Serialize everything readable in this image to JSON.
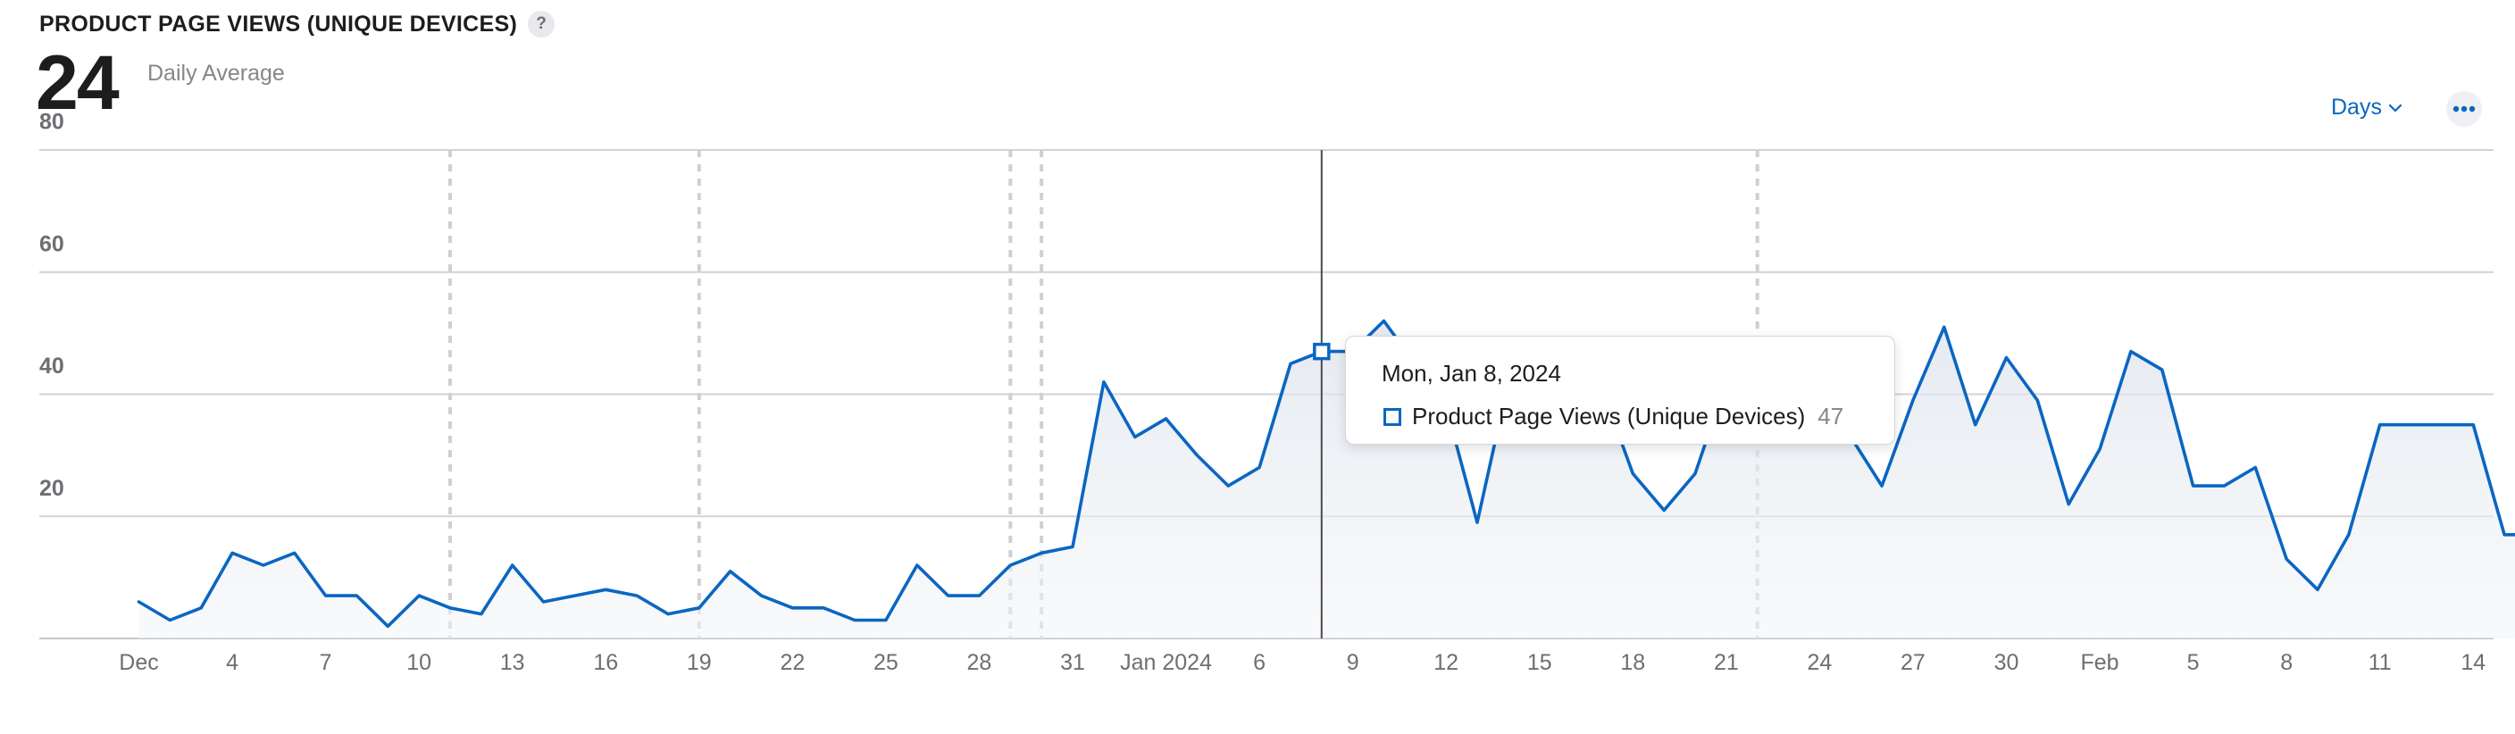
{
  "header": {
    "title": "PRODUCT PAGE VIEWS (UNIQUE DEVICES)",
    "help_icon": "?",
    "metric_value": "24",
    "metric_label": "Daily Average"
  },
  "controls": {
    "interval_label": "Days",
    "interval_icon": "chevron-down-icon",
    "more_icon": "ellipsis-icon"
  },
  "tooltip": {
    "date": "Mon, Jan 8, 2024",
    "series": "Product Page Views (Unique Devices)",
    "value": "47"
  },
  "colors": {
    "line": "#0a66c2",
    "grid": "#d2d2d7",
    "marker_line": "#4a4a4a"
  },
  "chart_data": {
    "type": "area",
    "title": "PRODUCT PAGE VIEWS (UNIQUE DEVICES)",
    "x_start": "2023-12-01",
    "x_end": "2024-02-16",
    "ylim": [
      0,
      80
    ],
    "yticks": [
      20,
      40,
      60,
      80
    ],
    "grid": true,
    "xticks": [
      {
        "date": "2023-12-01",
        "label": "Dec"
      },
      {
        "date": "2023-12-04",
        "label": "4"
      },
      {
        "date": "2023-12-07",
        "label": "7"
      },
      {
        "date": "2023-12-10",
        "label": "10"
      },
      {
        "date": "2023-12-13",
        "label": "13"
      },
      {
        "date": "2023-12-16",
        "label": "16"
      },
      {
        "date": "2023-12-19",
        "label": "19"
      },
      {
        "date": "2023-12-22",
        "label": "22"
      },
      {
        "date": "2023-12-25",
        "label": "25"
      },
      {
        "date": "2023-12-28",
        "label": "28"
      },
      {
        "date": "2023-12-31",
        "label": "31"
      },
      {
        "date": "2024-01-03",
        "label": "Jan 2024"
      },
      {
        "date": "2024-01-06",
        "label": "6"
      },
      {
        "date": "2024-01-09",
        "label": "9"
      },
      {
        "date": "2024-01-12",
        "label": "12"
      },
      {
        "date": "2024-01-15",
        "label": "15"
      },
      {
        "date": "2024-01-18",
        "label": "18"
      },
      {
        "date": "2024-01-21",
        "label": "21"
      },
      {
        "date": "2024-01-24",
        "label": "24"
      },
      {
        "date": "2024-01-27",
        "label": "27"
      },
      {
        "date": "2024-01-30",
        "label": "30"
      },
      {
        "date": "2024-02-02",
        "label": "Feb"
      },
      {
        "date": "2024-02-05",
        "label": "5"
      },
      {
        "date": "2024-02-08",
        "label": "8"
      },
      {
        "date": "2024-02-11",
        "label": "11"
      },
      {
        "date": "2024-02-14",
        "label": "14"
      }
    ],
    "annotation_dates": [
      "2023-12-11",
      "2023-12-19",
      "2023-12-29",
      "2023-12-30",
      "2024-01-22"
    ],
    "highlight_date": "2024-01-08",
    "series": [
      {
        "name": "Product Page Views (Unique Devices)",
        "dates": [
          "2023-12-01",
          "2023-12-02",
          "2023-12-03",
          "2023-12-04",
          "2023-12-05",
          "2023-12-06",
          "2023-12-07",
          "2023-12-08",
          "2023-12-09",
          "2023-12-10",
          "2023-12-11",
          "2023-12-12",
          "2023-12-13",
          "2023-12-14",
          "2023-12-15",
          "2023-12-16",
          "2023-12-17",
          "2023-12-18",
          "2023-12-19",
          "2023-12-20",
          "2023-12-21",
          "2023-12-22",
          "2023-12-23",
          "2023-12-24",
          "2023-12-25",
          "2023-12-26",
          "2023-12-27",
          "2023-12-28",
          "2023-12-29",
          "2023-12-30",
          "2023-12-31",
          "2024-01-01",
          "2024-01-02",
          "2024-01-03",
          "2024-01-04",
          "2024-01-05",
          "2024-01-06",
          "2024-01-07",
          "2024-01-08",
          "2024-01-09",
          "2024-01-10",
          "2024-01-11",
          "2024-01-12",
          "2024-01-13",
          "2024-01-14",
          "2024-01-15",
          "2024-01-16",
          "2024-01-17",
          "2024-01-18",
          "2024-01-19",
          "2024-01-20",
          "2024-01-21",
          "2024-01-22",
          "2024-01-23",
          "2024-01-24",
          "2024-01-25",
          "2024-01-26",
          "2024-01-27",
          "2024-01-28",
          "2024-01-29",
          "2024-01-30",
          "2024-01-31",
          "2024-02-01",
          "2024-02-02",
          "2024-02-03",
          "2024-02-04",
          "2024-02-05",
          "2024-02-06",
          "2024-02-07",
          "2024-02-08",
          "2024-02-09",
          "2024-02-10",
          "2024-02-11",
          "2024-02-12",
          "2024-02-13",
          "2024-02-14",
          "2024-02-15",
          "2024-02-16"
        ],
        "values": [
          6,
          3,
          5,
          14,
          12,
          14,
          7,
          7,
          2,
          7,
          5,
          4,
          12,
          6,
          7,
          8,
          7,
          4,
          5,
          11,
          7,
          5,
          5,
          3,
          3,
          12,
          7,
          7,
          12,
          14,
          15,
          42,
          33,
          36,
          30,
          25,
          28,
          45,
          47,
          47,
          52,
          45,
          38,
          19,
          42,
          47,
          42,
          41,
          27,
          21,
          27,
          42,
          40,
          36,
          39,
          33,
          25,
          39,
          51,
          35,
          46,
          39,
          22,
          31,
          47,
          44,
          25,
          25,
          28,
          13,
          8,
          17,
          35,
          35,
          35,
          35,
          17,
          17
        ]
      }
    ]
  }
}
